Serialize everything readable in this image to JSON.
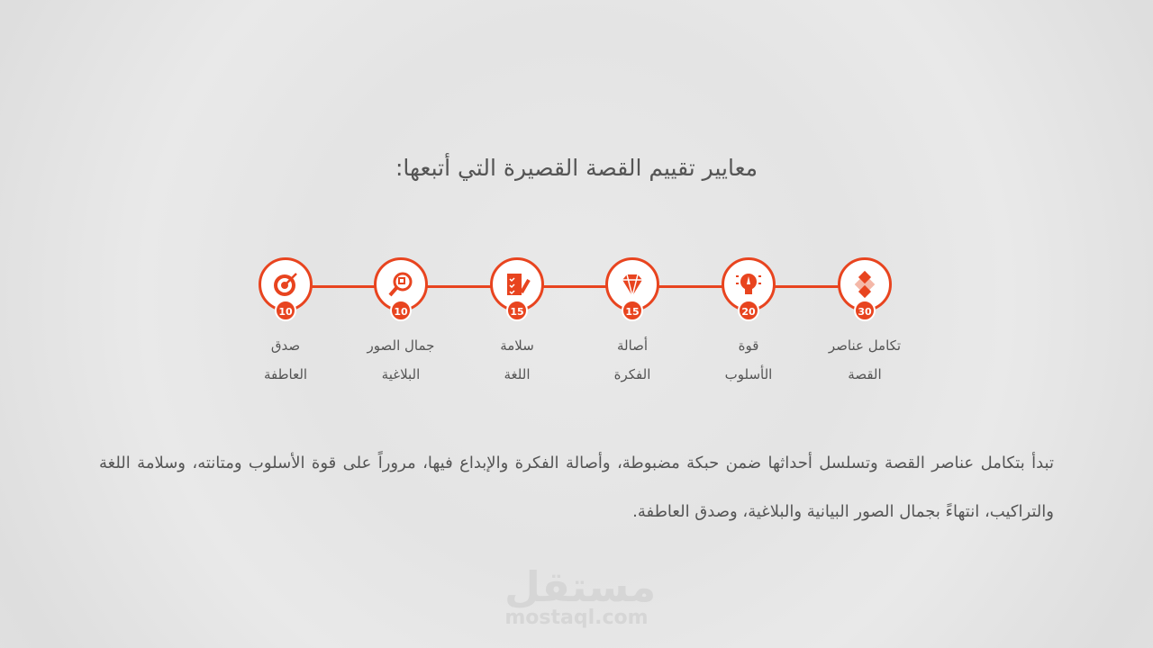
{
  "title": "معايير تقييم القصة القصيرة التي أتبعها:",
  "accent": "#e8441f",
  "steps": [
    {
      "icon": "puzzle-icon",
      "score": "30",
      "line1": "تكامل عناصر",
      "line2": "القصة"
    },
    {
      "icon": "lightbulb-icon",
      "score": "20",
      "line1": "قوة",
      "line2": "الأسلوب"
    },
    {
      "icon": "diamond-icon",
      "score": "15",
      "line1": "أصالة",
      "line2": "الفكرة"
    },
    {
      "icon": "checklist-pen-icon",
      "score": "15",
      "line1": "سلامة",
      "line2": "اللغة"
    },
    {
      "icon": "magnifier-icon",
      "score": "10",
      "line1": "جمال الصور",
      "line2": "البلاغية"
    },
    {
      "icon": "target-icon",
      "score": "10",
      "line1": "صدق",
      "line2": "العاطفة"
    }
  ],
  "paragraph": "تبدأ بتكامل عناصر القصة وتسلسل أحداثها ضمن حبكة مضبوطة، وأصالة الفكرة والإبداع فيها، مروراً على قوة الأسلوب ومتانته، وسلامة اللغة والتراكيب، انتهاءً بجمال الصور البيانية والبلاغية، وصدق العاطفة.",
  "watermark": {
    "arabic": "مستقل",
    "latin": "mostaql.com"
  }
}
